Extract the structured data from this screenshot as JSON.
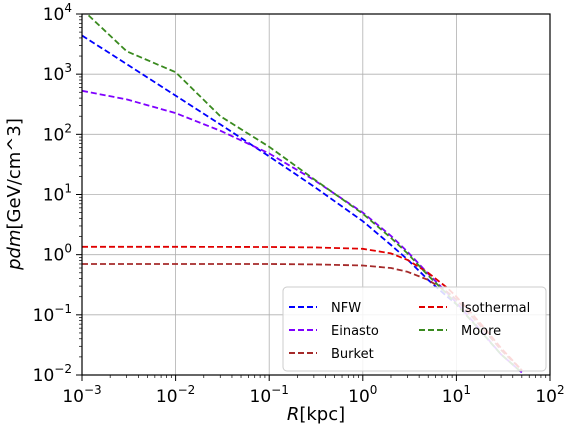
{
  "chart_data": {
    "type": "line",
    "x_scale": "log",
    "y_scale": "log",
    "xlim": [
      0.001,
      100
    ],
    "ylim": [
      0.01,
      10000
    ],
    "xlabel_italic": "R",
    "xlabel_rest": "[kpc]",
    "ylabel_italic": "pdm",
    "ylabel_rest": "[GeV/cm^3]",
    "grid": true,
    "legend_position": "lower-right",
    "x_ticks": [
      {
        "value": 0.001,
        "base": "10",
        "exp": "−3"
      },
      {
        "value": 0.01,
        "base": "10",
        "exp": "−2"
      },
      {
        "value": 0.1,
        "base": "10",
        "exp": "−1"
      },
      {
        "value": 1,
        "base": "10",
        "exp": "0"
      },
      {
        "value": 10,
        "base": "10",
        "exp": "1"
      },
      {
        "value": 100,
        "base": "10",
        "exp": "2"
      }
    ],
    "y_ticks": [
      {
        "value": 0.01,
        "base": "10",
        "exp": "−2"
      },
      {
        "value": 0.1,
        "base": "10",
        "exp": "−1"
      },
      {
        "value": 1,
        "base": "10",
        "exp": "0"
      },
      {
        "value": 10,
        "base": "10",
        "exp": "1"
      },
      {
        "value": 100,
        "base": "10",
        "exp": "2"
      },
      {
        "value": 1000,
        "base": "10",
        "exp": "3"
      },
      {
        "value": 10000,
        "base": "10",
        "exp": "4"
      }
    ],
    "series": [
      {
        "name": "NFW",
        "color": "#0000ff",
        "x": [
          0.001,
          0.003,
          0.01,
          0.03,
          0.1,
          0.3,
          1,
          2,
          3,
          5,
          8,
          10,
          15,
          20,
          30,
          50
        ],
        "y": [
          4400,
          1470,
          440,
          146,
          43,
          13.6,
          3.6,
          1.45,
          0.83,
          0.38,
          0.2,
          0.15,
          0.075,
          0.045,
          0.022,
          0.011
        ]
      },
      {
        "name": "Einasto",
        "color": "#7f00ff",
        "x": [
          0.001,
          0.003,
          0.01,
          0.03,
          0.1,
          0.3,
          1,
          2,
          3,
          5,
          8,
          10,
          15,
          20,
          30,
          50
        ],
        "y": [
          530,
          380,
          225,
          115,
          48,
          17.5,
          5,
          2.05,
          1.12,
          0.48,
          0.23,
          0.16,
          0.078,
          0.046,
          0.022,
          0.011
        ]
      },
      {
        "name": "Burket",
        "color": "#a52a2a",
        "x": [
          0.001,
          0.01,
          0.1,
          0.3,
          1,
          2,
          3,
          5,
          8,
          10,
          15,
          20,
          30,
          50
        ],
        "y": [
          0.7,
          0.7,
          0.7,
          0.69,
          0.66,
          0.6,
          0.52,
          0.38,
          0.24,
          0.18,
          0.09,
          0.055,
          0.026,
          0.012
        ]
      },
      {
        "name": "Isothermal",
        "color": "#e00000",
        "x": [
          0.001,
          0.01,
          0.1,
          0.3,
          1,
          2,
          3,
          5,
          8,
          10,
          15,
          20,
          30,
          50
        ],
        "y": [
          1.35,
          1.35,
          1.34,
          1.32,
          1.25,
          1.05,
          0.82,
          0.5,
          0.28,
          0.2,
          0.1,
          0.06,
          0.028,
          0.012
        ]
      },
      {
        "name": "Moore",
        "color": "#3a8a1f",
        "x": [
          0.001,
          0.003,
          0.01,
          0.03,
          0.1,
          0.3,
          1,
          2,
          3,
          5,
          8,
          10,
          15,
          20,
          30,
          50
        ],
        "y": [
          12000,
          2400,
          1080,
          200,
          62,
          18,
          4.8,
          1.9,
          1.05,
          0.45,
          0.22,
          0.15,
          0.075,
          0.045,
          0.022,
          0.011
        ]
      }
    ],
    "legend_entries": [
      "NFW",
      "Isothermal",
      "Einasto",
      "Moore",
      "Burket"
    ]
  }
}
